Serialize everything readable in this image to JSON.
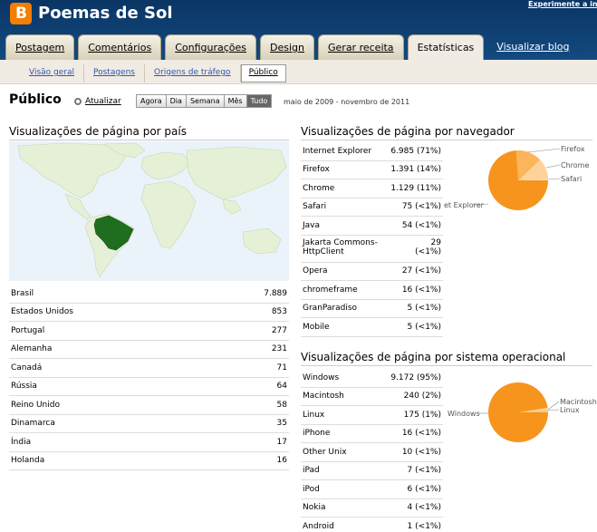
{
  "header": {
    "blog_title": "Poemas de Sol",
    "top_link": "Experimente a interface",
    "tabs": [
      "Postagem",
      "Comentários",
      "Configurações",
      "Design",
      "Gerar receita",
      "Estatísticas"
    ],
    "view_blog": "Visualizar blog"
  },
  "subnav": [
    "Visão geral",
    "Postagens",
    "Origens de tráfego",
    "Público"
  ],
  "page": {
    "title": "Público",
    "refresh": "Atualizar",
    "periods": [
      "Agora",
      "Dia",
      "Semana",
      "Mês",
      "Tudo"
    ],
    "active_period": "Tudo",
    "date_range": "maio de 2009 - novembro de 2011"
  },
  "countries": {
    "heading": "Visualizações de página por país",
    "rows": [
      {
        "name": "Brasil",
        "value": "7.889"
      },
      {
        "name": "Estados Unidos",
        "value": "853"
      },
      {
        "name": "Portugal",
        "value": "277"
      },
      {
        "name": "Alemanha",
        "value": "231"
      },
      {
        "name": "Canadá",
        "value": "71"
      },
      {
        "name": "Rússia",
        "value": "64"
      },
      {
        "name": "Reino Unido",
        "value": "58"
      },
      {
        "name": "Dinamarca",
        "value": "35"
      },
      {
        "name": "Índia",
        "value": "17"
      },
      {
        "name": "Holanda",
        "value": "16"
      }
    ]
  },
  "browsers": {
    "heading": "Visualizações de página por navegador",
    "rows": [
      {
        "name": "Internet Explorer",
        "value": "6.985",
        "pct": "(71%)"
      },
      {
        "name": "Firefox",
        "value": "1.391",
        "pct": "(14%)"
      },
      {
        "name": "Chrome",
        "value": "1.129",
        "pct": "(11%)"
      },
      {
        "name": "Safari",
        "value": "75",
        "pct": "(<1%)"
      },
      {
        "name": "Java",
        "value": "54",
        "pct": "(<1%)"
      },
      {
        "name": "Jakarta Commons-HttpClient",
        "value": "29",
        "pct": "(<1%)"
      },
      {
        "name": "Opera",
        "value": "27",
        "pct": "(<1%)"
      },
      {
        "name": "chromeframe",
        "value": "16",
        "pct": "(<1%)"
      },
      {
        "name": "GranParadiso",
        "value": "5",
        "pct": "(<1%)"
      },
      {
        "name": "Mobile",
        "value": "5",
        "pct": "(<1%)"
      }
    ],
    "pie_labels": [
      "Firefox",
      "Chrome",
      "Safari",
      "et Explorer"
    ]
  },
  "os": {
    "heading": "Visualizações de página por sistema operacional",
    "rows": [
      {
        "name": "Windows",
        "value": "9.172",
        "pct": "(95%)"
      },
      {
        "name": "Macintosh",
        "value": "240",
        "pct": "(2%)"
      },
      {
        "name": "Linux",
        "value": "175",
        "pct": "(1%)"
      },
      {
        "name": "iPhone",
        "value": "16",
        "pct": "(<1%)"
      },
      {
        "name": "Other Unix",
        "value": "10",
        "pct": "(<1%)"
      },
      {
        "name": "iPad",
        "value": "7",
        "pct": "(<1%)"
      },
      {
        "name": "iPod",
        "value": "6",
        "pct": "(<1%)"
      },
      {
        "name": "Nokia",
        "value": "4",
        "pct": "(<1%)"
      },
      {
        "name": "Android",
        "value": "1",
        "pct": "(<1%)"
      }
    ],
    "pie_labels": [
      "Windows",
      "Macintosh",
      "Linux"
    ]
  },
  "colors": {
    "header_bg": "#0d3b6e",
    "orange": "#f7941d",
    "orange_light": "#fbc77a",
    "brazil": "#1f6e1f",
    "land": "#e6f0d6"
  }
}
